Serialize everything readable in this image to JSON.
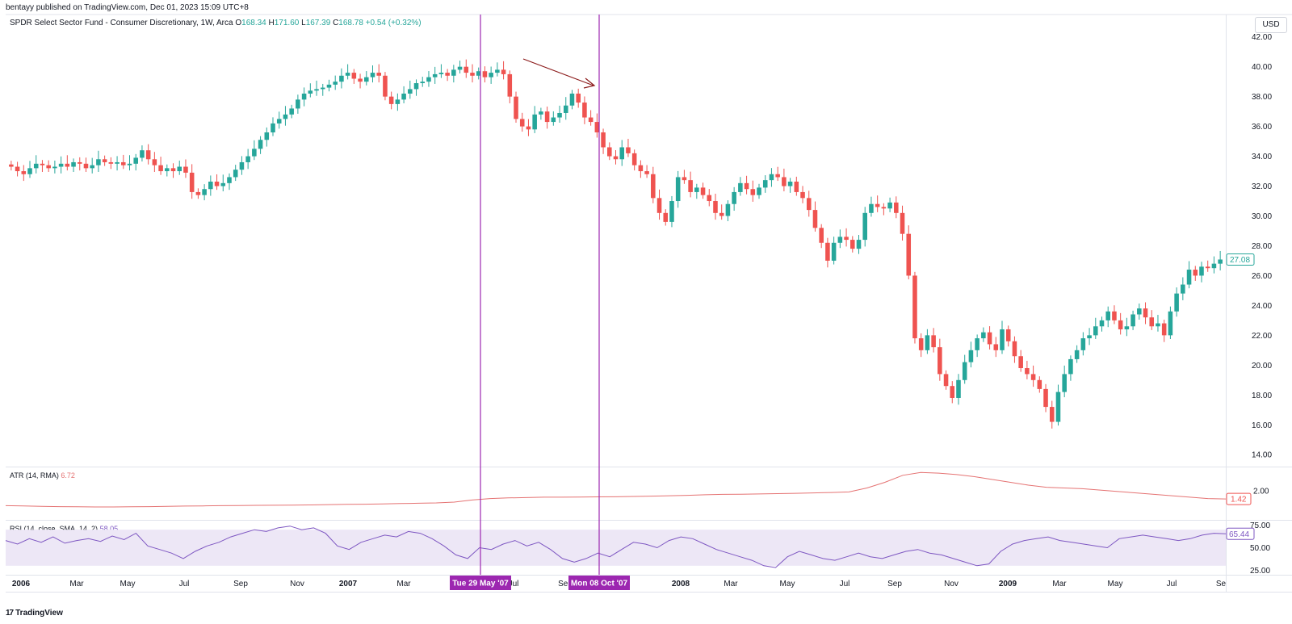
{
  "header": {
    "published": "bentayy published on TradingView.com, Dec 01, 2023 15:09 UTC+8",
    "symbol": "SPDR Select Sector Fund - Consumer Discretionary, 1W, Arca",
    "ohlc": {
      "o_label": "O",
      "o": "168.34",
      "h_label": "H",
      "h": "171.60",
      "l_label": "L",
      "l": "167.39",
      "c_label": "C",
      "c": "168.78",
      "chg": "+0.54 (+0.32%)"
    }
  },
  "currency": "USD",
  "footer": {
    "logo_text": "TradingView",
    "logo_mark": "17"
  },
  "colors": {
    "up": "#26a69a",
    "down": "#ef5350",
    "vline": "#9c27b0",
    "atr": "#e57373",
    "rsi": "#7e57c2",
    "rsi_band": "#ede7f6",
    "arrow": "#8b1a1a"
  },
  "chart_data": {
    "type": "candlestick",
    "interval": "1W",
    "price_axis": {
      "ticks": [
        "42.00",
        "40.00",
        "38.00",
        "36.00",
        "34.00",
        "32.00",
        "30.00",
        "28.00",
        "26.00",
        "24.00",
        "22.00",
        "20.00",
        "18.00",
        "16.00",
        "14.00"
      ],
      "range": [
        13.2,
        43.5
      ]
    },
    "last_price": "27.08",
    "time_axis": [
      "2006",
      "Mar",
      "May",
      "Jul",
      "Sep",
      "Nov",
      "2007",
      "Mar",
      "Jul",
      "Sep",
      "2008",
      "Mar",
      "May",
      "Jul",
      "Sep",
      "Nov",
      "2009",
      "Mar",
      "May",
      "Jul",
      "Se"
    ],
    "markers": [
      {
        "label": "Tue 29 May '07"
      },
      {
        "label": "Mon 08 Oct '07"
      }
    ],
    "closes": [
      33.3,
      33.0,
      32.8,
      33.2,
      33.5,
      33.4,
      33.2,
      33.3,
      33.5,
      33.3,
      33.6,
      33.5,
      33.2,
      33.4,
      33.8,
      33.6,
      33.5,
      33.6,
      33.4,
      33.5,
      33.9,
      34.4,
      33.8,
      33.4,
      33.0,
      33.2,
      33.0,
      33.3,
      32.9,
      31.6,
      31.4,
      31.8,
      32.3,
      32.0,
      32.2,
      32.6,
      33.1,
      33.6,
      34.0,
      34.5,
      35.1,
      35.6,
      36.2,
      36.5,
      36.8,
      37.2,
      37.8,
      38.2,
      38.4,
      38.5,
      38.6,
      38.8,
      39.0,
      39.4,
      39.6,
      39.2,
      39.0,
      39.3,
      39.6,
      39.4,
      38.0,
      37.5,
      37.8,
      38.2,
      38.5,
      38.9,
      39.0,
      39.3,
      39.5,
      39.6,
      39.4,
      39.8,
      40.0,
      39.6,
      39.4,
      39.7,
      39.3,
      39.6,
      39.8,
      39.5,
      38.0,
      36.5,
      36.0,
      35.8,
      36.8,
      37.0,
      36.3,
      36.6,
      36.9,
      37.4,
      38.2,
      37.6,
      36.6,
      36.3,
      35.6,
      34.6,
      34.0,
      33.8,
      34.6,
      34.2,
      33.4,
      33.0,
      32.8,
      31.2,
      30.2,
      29.6,
      31.0,
      32.6,
      32.4,
      31.6,
      31.9,
      31.4,
      31.0,
      30.2,
      30.0,
      30.8,
      31.6,
      32.2,
      31.8,
      31.4,
      31.9,
      32.4,
      32.8,
      32.6,
      32.0,
      32.3,
      31.6,
      31.2,
      30.4,
      29.2,
      28.2,
      27.0,
      28.2,
      28.6,
      28.4,
      27.8,
      28.4,
      30.2,
      30.8,
      30.6,
      30.5,
      30.9,
      30.2,
      28.8,
      26.0,
      21.8,
      21.0,
      22.0,
      21.2,
      19.4,
      18.6,
      17.8,
      19.0,
      20.2,
      21.0,
      21.8,
      22.2,
      21.4,
      21.0,
      22.4,
      21.6,
      20.6,
      19.8,
      19.4,
      19.0,
      18.4,
      17.2,
      16.2,
      18.2,
      19.4,
      20.4,
      21.0,
      21.8,
      22.0,
      22.6,
      23.0,
      23.6,
      23.0,
      22.4,
      22.6,
      23.4,
      23.8,
      23.2,
      22.6,
      22.8,
      22.0,
      23.6,
      24.8,
      25.4,
      26.4,
      26.0,
      26.6,
      26.5,
      26.8,
      27.08
    ],
    "atr": {
      "label": "ATR (14, RMA)",
      "value": "6.72",
      "last": "1.42",
      "axis_ticks": [
        "2.00"
      ],
      "range": [
        0,
        3.6
      ],
      "values": [
        0.95,
        0.93,
        0.9,
        0.88,
        0.87,
        0.86,
        0.86,
        0.87,
        0.88,
        0.9,
        0.92,
        0.93,
        0.95,
        0.96,
        0.97,
        0.98,
        0.99,
        1.0,
        1.02,
        1.04,
        1.05,
        1.07,
        1.1,
        1.12,
        1.14,
        1.2,
        1.35,
        1.45,
        1.5,
        1.52,
        1.55,
        1.55,
        1.56,
        1.57,
        1.58,
        1.6,
        1.62,
        1.65,
        1.68,
        1.72,
        1.75,
        1.76,
        1.78,
        1.8,
        1.82,
        1.85,
        1.88,
        1.92,
        2.2,
        2.6,
        3.1,
        3.3,
        3.25,
        3.15,
        3.0,
        2.8,
        2.6,
        2.4,
        2.25,
        2.2,
        2.15,
        2.05,
        1.95,
        1.85,
        1.75,
        1.65,
        1.55,
        1.45,
        1.42
      ]
    },
    "rsi": {
      "label": "RSI (14, close, SMA, 14, 2)",
      "value": "58.05",
      "last": "65.44",
      "axis_ticks": [
        "75.00",
        "50.00",
        "25.00"
      ],
      "band": [
        30,
        70
      ],
      "range": [
        20,
        80
      ],
      "values": [
        58,
        54,
        60,
        56,
        62,
        55,
        58,
        60,
        57,
        63,
        59,
        66,
        52,
        48,
        44,
        38,
        46,
        52,
        56,
        62,
        66,
        70,
        68,
        72,
        74,
        70,
        72,
        66,
        52,
        48,
        56,
        60,
        64,
        62,
        68,
        66,
        60,
        52,
        42,
        38,
        50,
        48,
        54,
        58,
        52,
        56,
        48,
        38,
        34,
        38,
        44,
        40,
        48,
        56,
        54,
        50,
        58,
        62,
        60,
        54,
        48,
        44,
        40,
        36,
        30,
        28,
        40,
        46,
        42,
        38,
        36,
        40,
        44,
        40,
        38,
        42,
        46,
        48,
        44,
        42,
        38,
        34,
        30,
        32,
        46,
        54,
        58,
        60,
        62,
        58,
        56,
        54,
        52,
        50,
        60,
        62,
        64,
        62,
        60,
        58,
        60,
        64,
        66,
        65.44
      ]
    }
  }
}
